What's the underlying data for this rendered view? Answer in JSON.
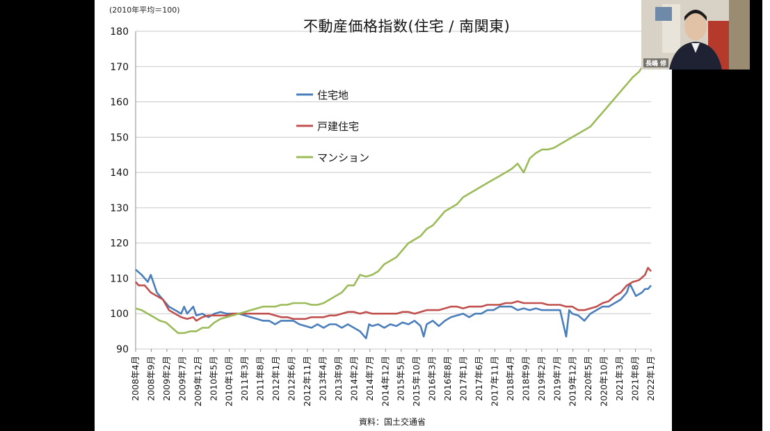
{
  "slide": {
    "unit_note": "(2010年平均＝100)",
    "title": "不動産価格指数(住宅 / 南関東)",
    "source": "資料：国土交通省"
  },
  "webcam": {
    "name_label": "長嶋 修"
  },
  "chart_data": {
    "type": "line",
    "title": "不動産価格指数(住宅 / 南関東)",
    "ylim": [
      90,
      180
    ],
    "y_ticks": [
      90,
      100,
      110,
      120,
      130,
      140,
      150,
      160,
      170,
      180
    ],
    "x_tick_labels": [
      "2008年4月",
      "2008年9月",
      "2009年2月",
      "2009年7月",
      "2009年12月",
      "2010年5月",
      "2010年10月",
      "2011年3月",
      "2011年8月",
      "2012年1月",
      "2012年6月",
      "2012年11月",
      "2013年4月",
      "2013年9月",
      "2014年2月",
      "2014年7月",
      "2014年12月",
      "2015年5月",
      "2015年10月",
      "2016年3月",
      "2016年8月",
      "2017年1月",
      "2017年6月",
      "2017年11月",
      "2018年4月",
      "2018年9月",
      "2019年2月",
      "2019年7月",
      "2019年12月",
      "2020年5月",
      "2020年10月",
      "2021年3月",
      "2021年8月",
      "2022年1月"
    ],
    "grid": true,
    "legend_position": "upper-left",
    "colors": {
      "住宅地": "#4a7ebb",
      "戸建住宅": "#c0504d",
      "マンション": "#9bbb59"
    },
    "series": [
      {
        "name": "住宅地",
        "points": [
          [
            0,
            112.5
          ],
          [
            2,
            111
          ],
          [
            4,
            109
          ],
          [
            5,
            111
          ],
          [
            7,
            106
          ],
          [
            9,
            104
          ],
          [
            11,
            102
          ],
          [
            13,
            101
          ],
          [
            15,
            100
          ],
          [
            16,
            102
          ],
          [
            17,
            100
          ],
          [
            19,
            102
          ],
          [
            20,
            99.5
          ],
          [
            22,
            100
          ],
          [
            24,
            99
          ],
          [
            26,
            100
          ],
          [
            28,
            100.5
          ],
          [
            30,
            100
          ],
          [
            32,
            100
          ],
          [
            34,
            100
          ],
          [
            36,
            99.5
          ],
          [
            38,
            99
          ],
          [
            40,
            98.5
          ],
          [
            42,
            98
          ],
          [
            44,
            98
          ],
          [
            46,
            97
          ],
          [
            48,
            98
          ],
          [
            50,
            98
          ],
          [
            52,
            98
          ],
          [
            54,
            97
          ],
          [
            56,
            96.5
          ],
          [
            58,
            96
          ],
          [
            60,
            97
          ],
          [
            62,
            96
          ],
          [
            64,
            97
          ],
          [
            66,
            97
          ],
          [
            68,
            96
          ],
          [
            70,
            97
          ],
          [
            72,
            96
          ],
          [
            74,
            95
          ],
          [
            76,
            93
          ],
          [
            77,
            97
          ],
          [
            78,
            96.5
          ],
          [
            80,
            97
          ],
          [
            82,
            96
          ],
          [
            84,
            97
          ],
          [
            86,
            96.5
          ],
          [
            88,
            97.5
          ],
          [
            90,
            97
          ],
          [
            92,
            98
          ],
          [
            94,
            96.5
          ],
          [
            95,
            93.5
          ],
          [
            96,
            97
          ],
          [
            98,
            98
          ],
          [
            100,
            96.5
          ],
          [
            102,
            98
          ],
          [
            104,
            99
          ],
          [
            106,
            99.5
          ],
          [
            108,
            100
          ],
          [
            110,
            99
          ],
          [
            112,
            100
          ],
          [
            114,
            100
          ],
          [
            116,
            101
          ],
          [
            118,
            101
          ],
          [
            120,
            102
          ],
          [
            122,
            102
          ],
          [
            124,
            102
          ],
          [
            126,
            101
          ],
          [
            128,
            101.5
          ],
          [
            130,
            101
          ],
          [
            132,
            101.5
          ],
          [
            134,
            101
          ],
          [
            136,
            101
          ],
          [
            138,
            101
          ],
          [
            140,
            101
          ],
          [
            142,
            93.5
          ],
          [
            143,
            101
          ],
          [
            144,
            100
          ],
          [
            146,
            99.5
          ],
          [
            148,
            98
          ],
          [
            150,
            100
          ],
          [
            152,
            101
          ],
          [
            154,
            102
          ],
          [
            156,
            102
          ],
          [
            158,
            103
          ],
          [
            160,
            104
          ],
          [
            162,
            106
          ],
          [
            163,
            108.5
          ],
          [
            165,
            105
          ],
          [
            167,
            106
          ],
          [
            168,
            107
          ],
          [
            169,
            107
          ],
          [
            170,
            108
          ]
        ]
      },
      {
        "name": "戸建住宅",
        "points": [
          [
            0,
            109
          ],
          [
            1,
            108
          ],
          [
            3,
            108
          ],
          [
            5,
            106
          ],
          [
            7,
            105
          ],
          [
            9,
            104
          ],
          [
            11,
            101
          ],
          [
            13,
            100
          ],
          [
            15,
            99
          ],
          [
            17,
            98.5
          ],
          [
            19,
            99
          ],
          [
            20,
            98
          ],
          [
            22,
            99
          ],
          [
            24,
            99.5
          ],
          [
            26,
            99.5
          ],
          [
            28,
            99.5
          ],
          [
            30,
            99.5
          ],
          [
            32,
            100
          ],
          [
            34,
            100
          ],
          [
            36,
            100
          ],
          [
            38,
            100
          ],
          [
            40,
            100
          ],
          [
            42,
            100
          ],
          [
            44,
            100
          ],
          [
            46,
            99.5
          ],
          [
            48,
            99
          ],
          [
            50,
            99
          ],
          [
            52,
            98.5
          ],
          [
            54,
            98.5
          ],
          [
            56,
            98.5
          ],
          [
            58,
            99
          ],
          [
            60,
            99
          ],
          [
            62,
            99
          ],
          [
            64,
            99.5
          ],
          [
            66,
            99.5
          ],
          [
            68,
            100
          ],
          [
            70,
            100.5
          ],
          [
            72,
            100.5
          ],
          [
            74,
            100
          ],
          [
            76,
            100.5
          ],
          [
            78,
            100
          ],
          [
            80,
            100
          ],
          [
            82,
            100
          ],
          [
            84,
            100
          ],
          [
            86,
            100
          ],
          [
            88,
            100.5
          ],
          [
            90,
            100.5
          ],
          [
            92,
            100
          ],
          [
            94,
            100.5
          ],
          [
            96,
            101
          ],
          [
            98,
            101
          ],
          [
            100,
            101
          ],
          [
            102,
            101.5
          ],
          [
            104,
            102
          ],
          [
            106,
            102
          ],
          [
            108,
            101.5
          ],
          [
            110,
            102
          ],
          [
            112,
            102
          ],
          [
            114,
            102
          ],
          [
            116,
            102.5
          ],
          [
            118,
            102.5
          ],
          [
            120,
            102.5
          ],
          [
            122,
            103
          ],
          [
            124,
            103
          ],
          [
            126,
            103.5
          ],
          [
            128,
            103
          ],
          [
            130,
            103
          ],
          [
            132,
            103
          ],
          [
            134,
            103
          ],
          [
            136,
            102.5
          ],
          [
            138,
            102.5
          ],
          [
            140,
            102.5
          ],
          [
            142,
            102
          ],
          [
            144,
            102
          ],
          [
            146,
            101
          ],
          [
            148,
            101
          ],
          [
            150,
            101.5
          ],
          [
            152,
            102
          ],
          [
            154,
            103
          ],
          [
            156,
            103.5
          ],
          [
            158,
            105
          ],
          [
            160,
            106
          ],
          [
            162,
            108
          ],
          [
            164,
            109
          ],
          [
            166,
            109.5
          ],
          [
            168,
            111
          ],
          [
            169,
            113
          ],
          [
            170,
            112
          ]
        ]
      },
      {
        "name": "マンション",
        "points": [
          [
            0,
            101.5
          ],
          [
            2,
            101
          ],
          [
            4,
            100
          ],
          [
            6,
            99
          ],
          [
            8,
            98
          ],
          [
            10,
            97.5
          ],
          [
            12,
            96
          ],
          [
            14,
            94.5
          ],
          [
            16,
            94.5
          ],
          [
            18,
            95
          ],
          [
            20,
            95
          ],
          [
            22,
            96
          ],
          [
            24,
            96
          ],
          [
            26,
            97.5
          ],
          [
            28,
            98.5
          ],
          [
            30,
            99
          ],
          [
            32,
            99.5
          ],
          [
            34,
            100
          ],
          [
            36,
            100.5
          ],
          [
            38,
            101
          ],
          [
            40,
            101.5
          ],
          [
            42,
            102
          ],
          [
            44,
            102
          ],
          [
            46,
            102
          ],
          [
            48,
            102.5
          ],
          [
            50,
            102.5
          ],
          [
            52,
            103
          ],
          [
            54,
            103
          ],
          [
            56,
            103
          ],
          [
            58,
            102.5
          ],
          [
            60,
            102.5
          ],
          [
            62,
            103
          ],
          [
            64,
            104
          ],
          [
            66,
            105
          ],
          [
            68,
            106
          ],
          [
            70,
            108
          ],
          [
            72,
            108
          ],
          [
            74,
            111
          ],
          [
            76,
            110.5
          ],
          [
            78,
            111
          ],
          [
            80,
            112
          ],
          [
            82,
            114
          ],
          [
            84,
            115
          ],
          [
            86,
            116
          ],
          [
            88,
            118
          ],
          [
            90,
            120
          ],
          [
            92,
            121
          ],
          [
            94,
            122
          ],
          [
            96,
            124
          ],
          [
            98,
            125
          ],
          [
            100,
            127
          ],
          [
            102,
            129
          ],
          [
            104,
            130
          ],
          [
            106,
            131
          ],
          [
            108,
            133
          ],
          [
            110,
            134
          ],
          [
            112,
            135
          ],
          [
            114,
            136
          ],
          [
            116,
            137
          ],
          [
            118,
            138
          ],
          [
            120,
            139
          ],
          [
            122,
            140
          ],
          [
            124,
            141
          ],
          [
            126,
            142.5
          ],
          [
            128,
            140
          ],
          [
            130,
            144
          ],
          [
            132,
            145.5
          ],
          [
            134,
            146.5
          ],
          [
            136,
            146.5
          ],
          [
            138,
            147
          ],
          [
            140,
            148
          ],
          [
            142,
            149
          ],
          [
            144,
            150
          ],
          [
            146,
            151
          ],
          [
            148,
            152
          ],
          [
            150,
            153
          ],
          [
            152,
            155
          ],
          [
            154,
            157
          ],
          [
            156,
            159
          ],
          [
            158,
            161
          ],
          [
            160,
            163
          ],
          [
            162,
            165
          ],
          [
            164,
            167
          ],
          [
            166,
            168.5
          ],
          [
            168,
            171
          ],
          [
            169,
            173
          ],
          [
            170,
            175
          ]
        ]
      }
    ]
  }
}
